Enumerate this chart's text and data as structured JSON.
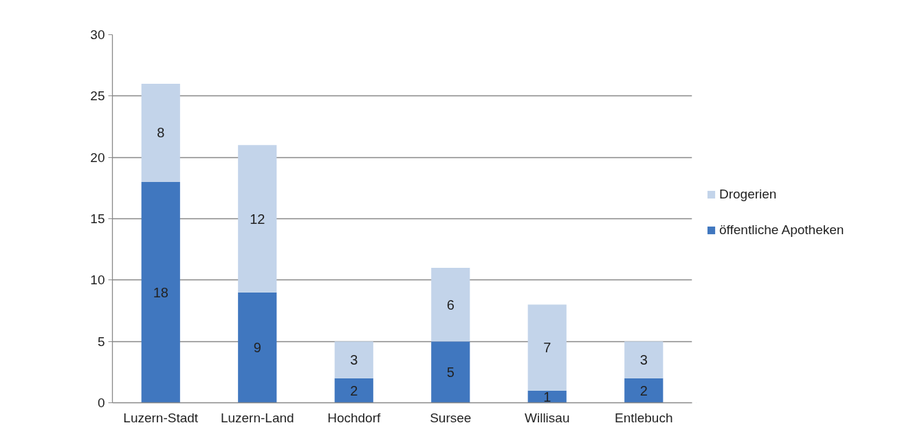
{
  "chart_data": {
    "type": "bar",
    "stacked": true,
    "categories": [
      "Luzern-Stadt",
      "Luzern-Land",
      "Hochdorf",
      "Sursee",
      "Willisau",
      "Entlebuch"
    ],
    "series": [
      {
        "name": "öffentliche Apotheken",
        "color": "#4077bf",
        "values": [
          18,
          9,
          2,
          5,
          1,
          2
        ]
      },
      {
        "name": "Drogerien",
        "color": "#c3d4ea",
        "values": [
          8,
          12,
          3,
          6,
          7,
          3
        ]
      }
    ],
    "ylim": [
      0,
      30
    ],
    "yticks": [
      0,
      5,
      10,
      15,
      20,
      25,
      30
    ],
    "grid": "y",
    "legend": "right",
    "data_labels": true
  }
}
